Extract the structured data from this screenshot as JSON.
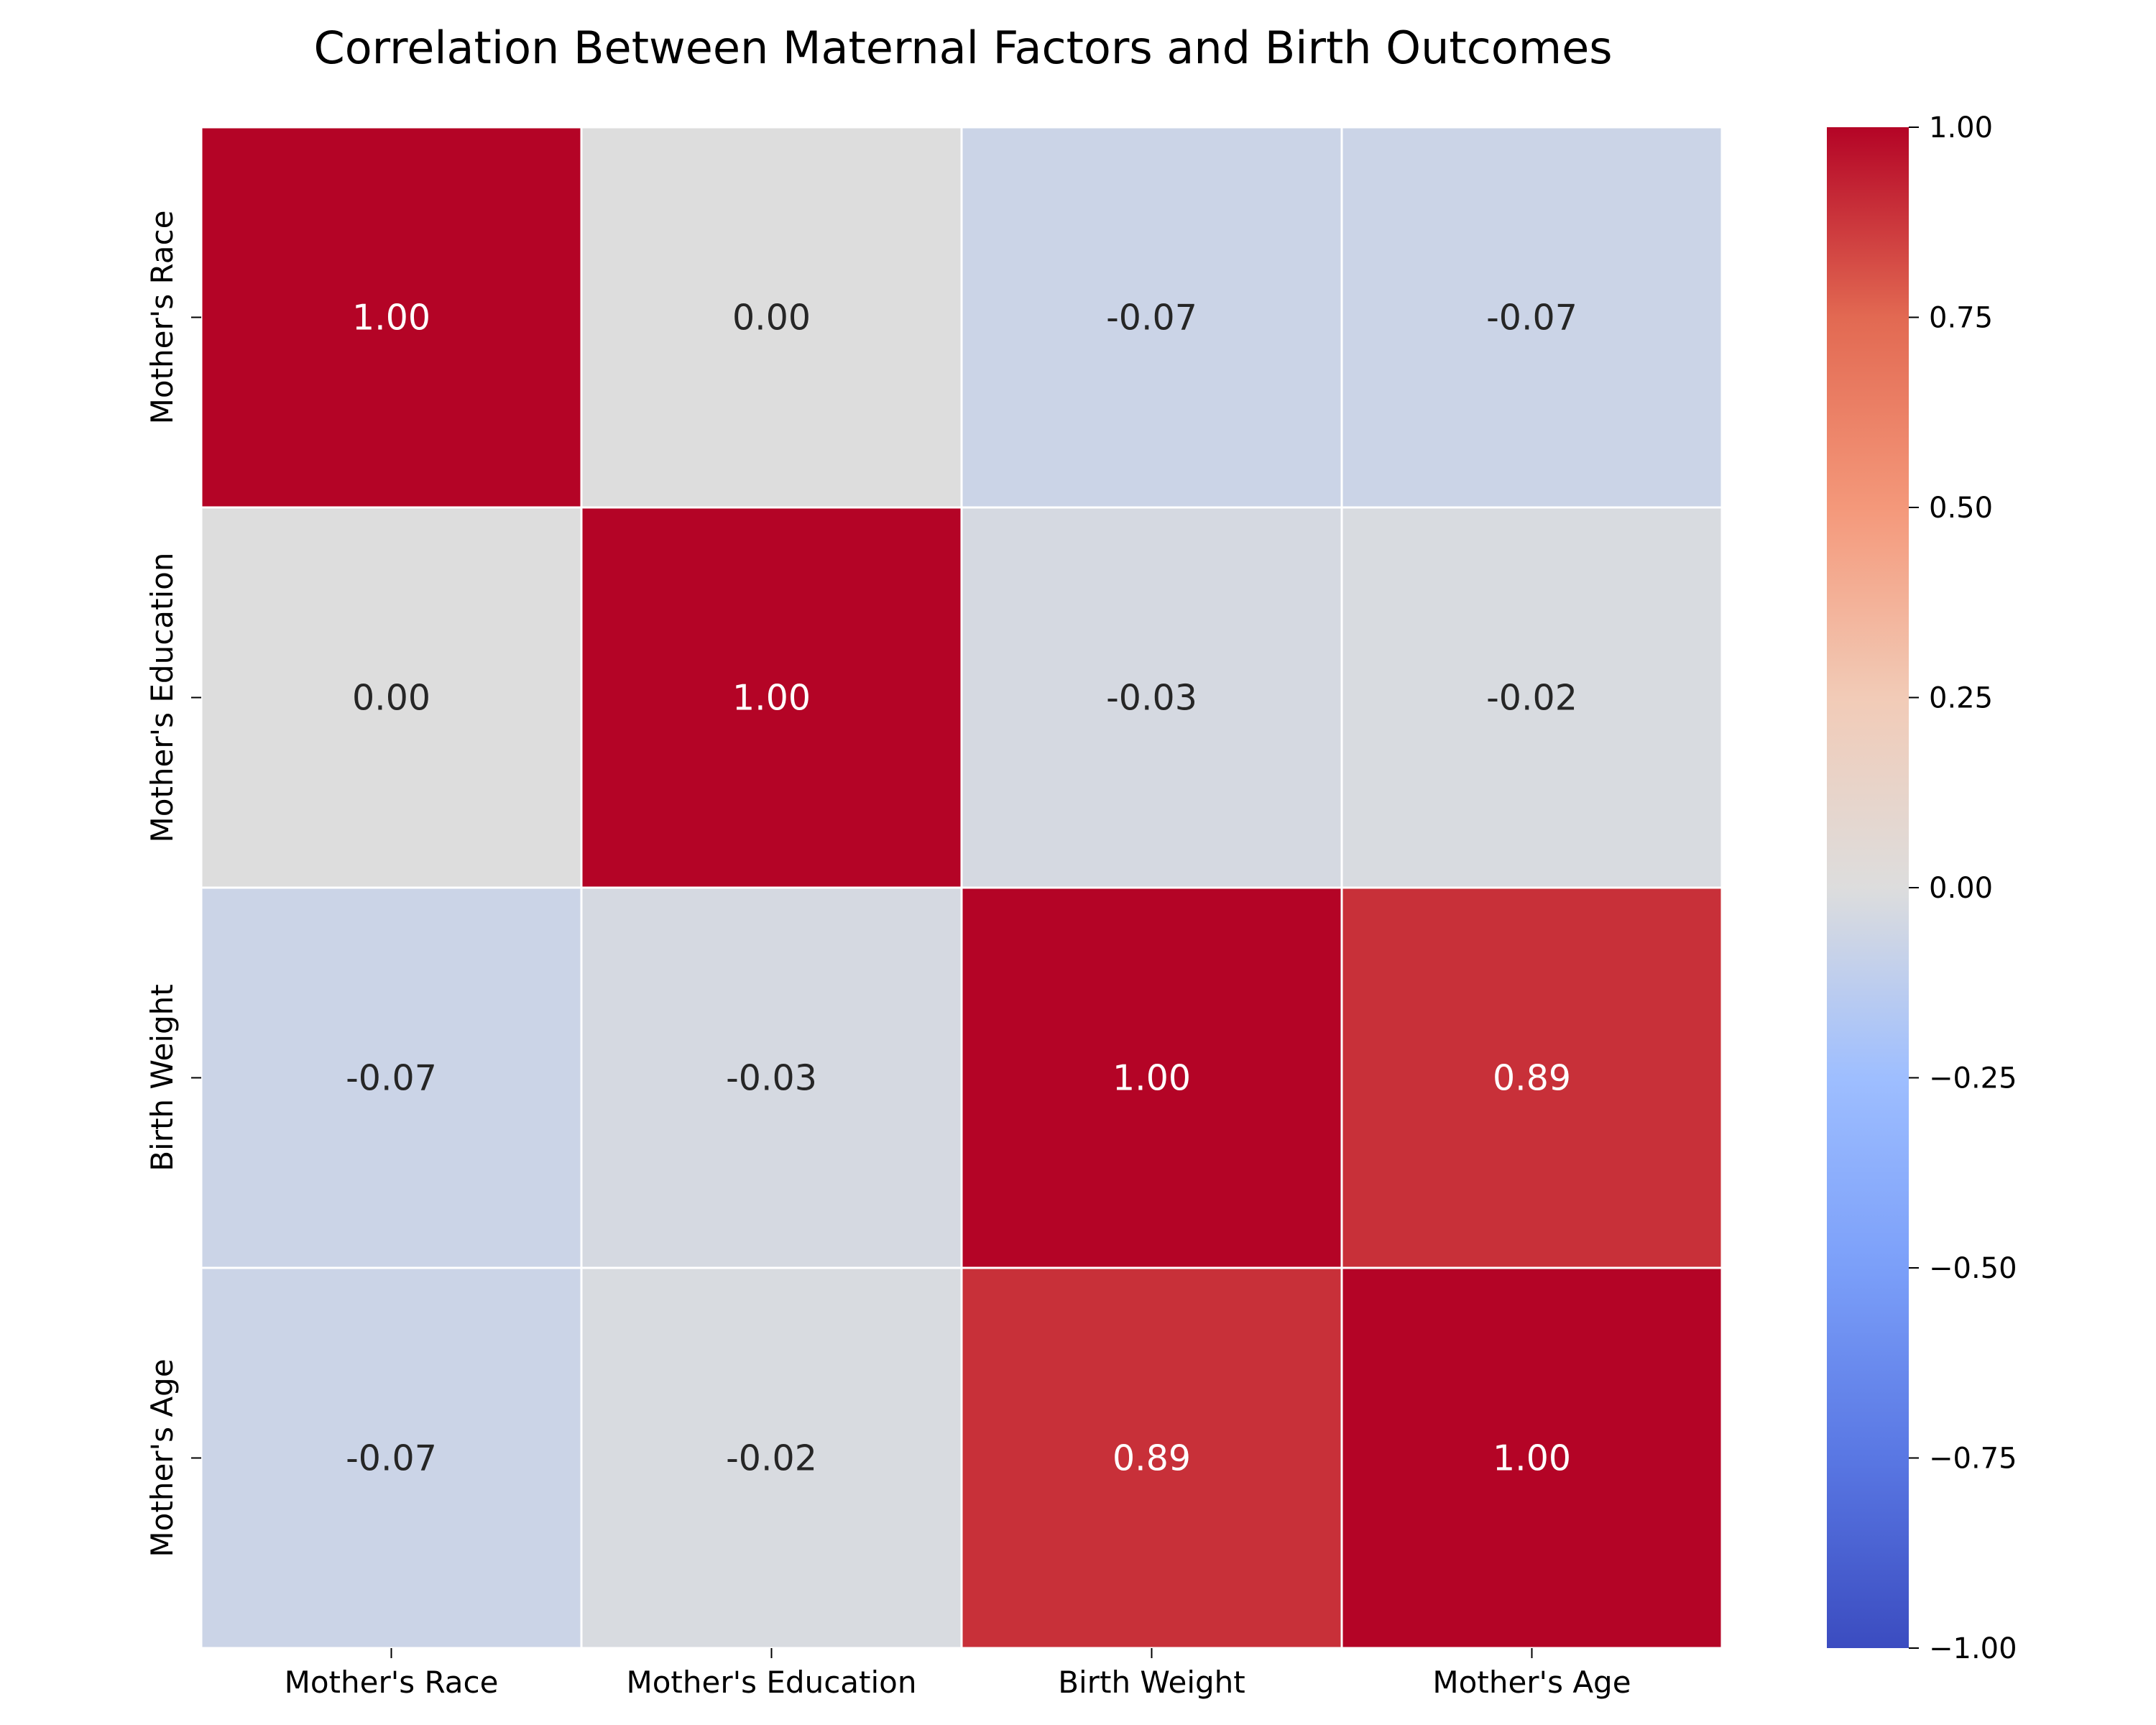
{
  "chart_data": {
    "type": "heatmap",
    "title": "Correlation Between Maternal Factors and Birth Outcomes",
    "xlabel": "",
    "ylabel": "",
    "x_categories": [
      "Mother's Race",
      "Mother's Education",
      "Birth Weight",
      "Mother's Age"
    ],
    "y_categories": [
      "Mother's Race",
      "Mother's Education",
      "Birth Weight",
      "Mother's Age"
    ],
    "values": [
      [
        1.0,
        0.0,
        -0.07,
        -0.07
      ],
      [
        0.0,
        1.0,
        -0.03,
        -0.02
      ],
      [
        -0.07,
        -0.03,
        1.0,
        0.89
      ],
      [
        -0.07,
        -0.02,
        0.89,
        1.0
      ]
    ],
    "value_labels": [
      [
        "1.00",
        "0.00",
        "-0.07",
        "-0.07"
      ],
      [
        "0.00",
        "1.00",
        "-0.03",
        "-0.02"
      ],
      [
        "-0.07",
        "-0.03",
        "1.00",
        "0.89"
      ],
      [
        "-0.07",
        "-0.02",
        "0.89",
        "1.00"
      ]
    ],
    "colormap": "coolwarm",
    "color_range": [
      -1.0,
      1.0
    ],
    "colorbar_ticks": [
      1.0,
      0.75,
      0.5,
      0.25,
      0.0,
      -0.25,
      -0.5,
      -0.75,
      -1.0
    ],
    "colorbar_tick_labels": [
      "1.00",
      "0.75",
      "0.50",
      "0.25",
      "0.00",
      "−0.25",
      "−0.50",
      "−0.75",
      "−1.00"
    ],
    "grid_line_color": "#ffffff",
    "annotation_colors": {
      "dark": "#262626",
      "light": "#ffffff"
    }
  }
}
